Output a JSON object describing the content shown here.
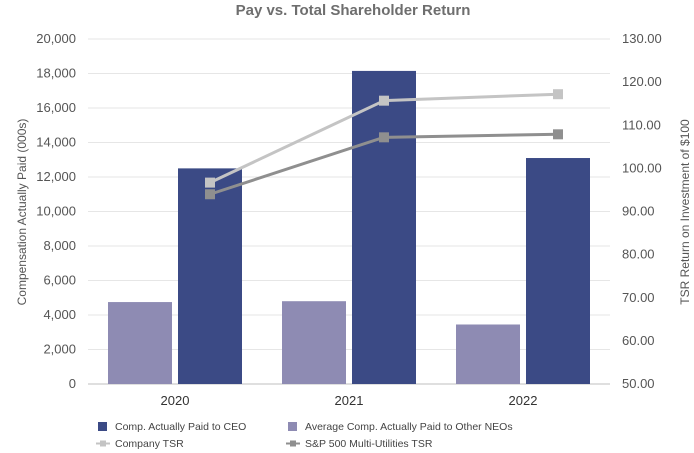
{
  "chart_data": {
    "type": "bar",
    "title": "Pay vs. Total Shareholder Return",
    "categories": [
      "2020",
      "2021",
      "2022"
    ],
    "ylabel": "Compensation Actually Paid (000s)",
    "y2label": "TSR Return on Investment of $100",
    "ylim": [
      0,
      20000
    ],
    "y2lim": [
      50,
      130
    ],
    "yticks": [
      "0",
      "2,000",
      "4,000",
      "6,000",
      "8,000",
      "10,000",
      "12,000",
      "14,000",
      "16,000",
      "18,000",
      "20,000"
    ],
    "y2ticks": [
      "50.00",
      "60.00",
      "70.00",
      "80.00",
      "90.00",
      "100.00",
      "110.00",
      "120.00",
      "130.00"
    ],
    "series": [
      {
        "name": "Average Comp. Actually Paid to Other NEOs",
        "kind": "bar",
        "axis": "left",
        "color": "#8e8bb3",
        "values": [
          4750,
          4800,
          3450
        ]
      },
      {
        "name": "Comp. Actually Paid to CEO",
        "kind": "bar",
        "axis": "left",
        "color": "#3b4a85",
        "values": [
          12500,
          18150,
          13100
        ]
      },
      {
        "name": "Company TSR",
        "kind": "line",
        "axis": "right",
        "color": "#c4c4c4",
        "values": [
          96.7,
          115.7,
          117.2
        ]
      },
      {
        "name": "S&P 500 Multi-Utilities TSR",
        "kind": "line",
        "axis": "right",
        "color": "#8f8f8f",
        "values": [
          94.0,
          107.2,
          107.9
        ]
      }
    ],
    "legend": [
      {
        "label": "Comp. Actually Paid to CEO",
        "marker": "square",
        "color": "#3b4a85"
      },
      {
        "label": "Average Comp. Actually Paid to Other NEOs",
        "marker": "square",
        "color": "#8e8bb3"
      },
      {
        "label": "Company TSR",
        "marker": "line",
        "color": "#c4c4c4"
      },
      {
        "label": "S&P 500 Multi-Utilities TSR",
        "marker": "line",
        "color": "#8f8f8f"
      }
    ],
    "grid": true,
    "legend_position": "bottom"
  }
}
